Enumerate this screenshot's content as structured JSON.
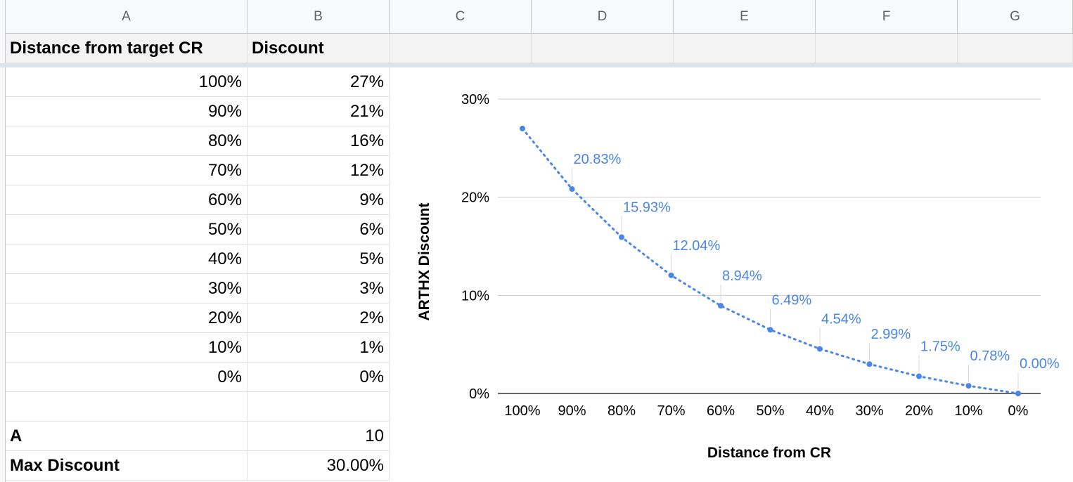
{
  "sheet": {
    "columns": [
      "A",
      "B",
      "C",
      "D",
      "E",
      "F",
      "G"
    ],
    "header_row": {
      "col_a": "Distance from target CR",
      "col_b": "Discount"
    },
    "rows": [
      {
        "distance": "100%",
        "discount": "27%"
      },
      {
        "distance": "90%",
        "discount": "21%"
      },
      {
        "distance": "80%",
        "discount": "16%"
      },
      {
        "distance": "70%",
        "discount": "12%"
      },
      {
        "distance": "60%",
        "discount": "9%"
      },
      {
        "distance": "50%",
        "discount": "6%"
      },
      {
        "distance": "40%",
        "discount": "5%"
      },
      {
        "distance": "30%",
        "discount": "3%"
      },
      {
        "distance": "20%",
        "discount": "2%"
      },
      {
        "distance": "10%",
        "discount": "1%"
      },
      {
        "distance": "0%",
        "discount": "0%"
      }
    ],
    "params": [
      {
        "label": "A",
        "value": "10"
      },
      {
        "label": "Max Discount",
        "value": "30.00%"
      }
    ]
  },
  "chart_data": {
    "type": "line",
    "x": [
      "100%",
      "90%",
      "80%",
      "70%",
      "60%",
      "50%",
      "40%",
      "30%",
      "20%",
      "10%",
      "0%"
    ],
    "values": [
      27.0,
      20.83,
      15.93,
      12.04,
      8.94,
      6.49,
      4.54,
      2.99,
      1.75,
      0.78,
      0.0
    ],
    "data_labels": [
      "",
      "20.83%",
      "15.93%",
      "12.04%",
      "8.94%",
      "6.49%",
      "4.54%",
      "2.99%",
      "1.75%",
      "0.78%",
      "0.00%"
    ],
    "title": "",
    "xlabel": "Distance from CR",
    "ylabel": "ARTHX Discount",
    "yticks": [
      "0%",
      "10%",
      "20%",
      "30%"
    ],
    "ylim": [
      0,
      30
    ],
    "grid": true,
    "line_style": "dotted",
    "color": "#4a86e8"
  }
}
